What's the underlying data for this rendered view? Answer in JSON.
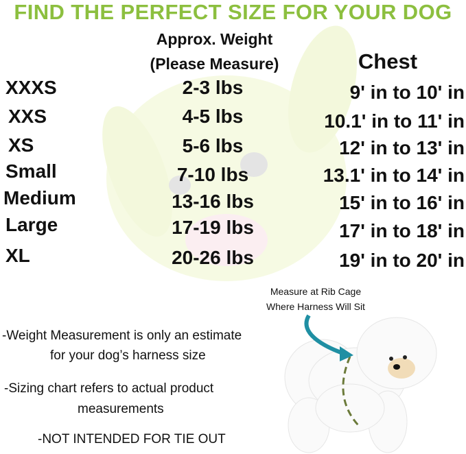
{
  "title": "FIND THE PERFECT SIZE FOR YOUR DOG",
  "colors": {
    "title": "#8cbf3f",
    "arrow": "#1f8fa3",
    "dash": "#6b7a3a",
    "watermark": "#f3f8dc"
  },
  "table": {
    "weight_header_line1": "Approx. Weight",
    "weight_header_line2": "(Please Measure)",
    "chest_header": "Chest",
    "rows": [
      {
        "size": "XXXS",
        "weight": "2-3 lbs",
        "chest": "9' in to 10' in"
      },
      {
        "size": "XXS",
        "weight": "4-5 lbs",
        "chest": "10.1' in to 11' in"
      },
      {
        "size": "XS",
        "weight": "5-6 lbs",
        "chest": "12' in to 13' in"
      },
      {
        "size": "Small",
        "weight": "7-10 lbs",
        "chest": "13.1' in to 14' in"
      },
      {
        "size": "Medium",
        "weight": "13-16 lbs",
        "chest": "15' in to 16' in"
      },
      {
        "size": "Large",
        "weight": "17-19 lbs",
        "chest": "17' in to 18' in"
      },
      {
        "size": "XL",
        "weight": "20-26 lbs",
        "chest": "19' in to 20' in"
      }
    ]
  },
  "diagram": {
    "caption_line1": "Measure at Rib Cage",
    "caption_line2": "Where Harness Will Sit"
  },
  "notes": {
    "n1_line1": "-Weight Measurement is only an estimate",
    "n1_line2": "for your dog’s harness size",
    "n2_line1": "-Sizing chart refers to actual product",
    "n2_line2": "measurements",
    "n3": "-NOT INTENDED FOR TIE OUT"
  }
}
